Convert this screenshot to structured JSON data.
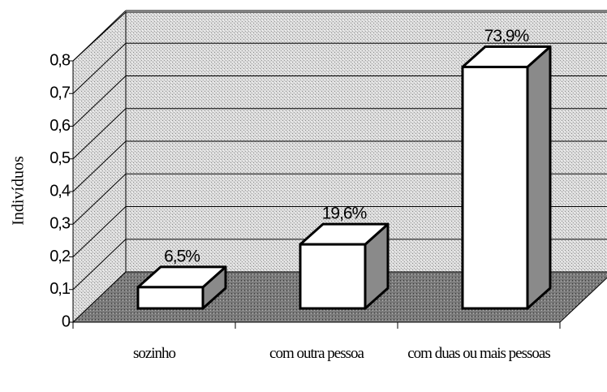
{
  "chart_data": {
    "type": "bar",
    "y_label": "Indivíduos",
    "categories": [
      "sozinho",
      "com outra pessoa",
      "com duas ou mais pessoas"
    ],
    "values": [
      0.065,
      0.196,
      0.739
    ],
    "value_labels": [
      "6,5%",
      "19,6%",
      "73,9%"
    ],
    "color": "#ffffff",
    "ylim": [
      0,
      0.8
    ],
    "yticks": [
      0,
      {
        "value": 0.1,
        "label": "0,1"
      },
      {
        "value": 0.2,
        "label": "0,2"
      },
      {
        "value": 0.3,
        "label": "0,3"
      },
      {
        "value": 0.4,
        "label": "0,4"
      },
      {
        "value": 0.5,
        "label": "0,5"
      },
      {
        "value": 0.6,
        "label": "0,6"
      },
      {
        "value": 0.7,
        "label": "0,7"
      },
      {
        "value": 0.8,
        "label": "0,8"
      }
    ],
    "grid": true
  }
}
